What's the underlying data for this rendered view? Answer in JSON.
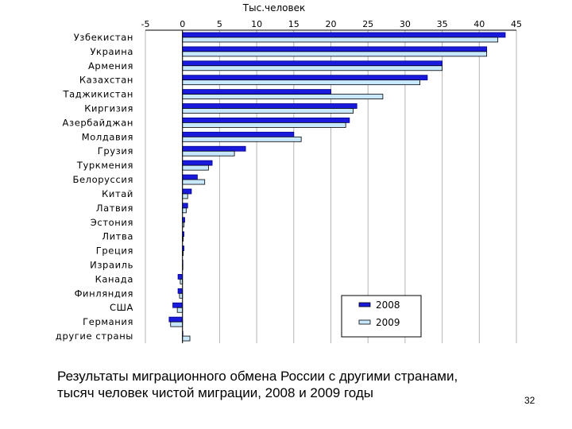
{
  "chart_data": {
    "type": "bar",
    "orientation": "horizontal",
    "title": "Тыс.человек",
    "xlim": [
      -5,
      45
    ],
    "xticks": [
      "-5",
      "0",
      "5",
      "10",
      "15",
      "20",
      "25",
      "30",
      "35",
      "40",
      "45"
    ],
    "xtick_values": [
      -5,
      0,
      5,
      10,
      15,
      20,
      25,
      30,
      35,
      40,
      45
    ],
    "grid": true,
    "legend_position": "bottom-right",
    "categories": [
      "Узбекистан",
      "Украина",
      "Армения",
      "Казахстан",
      "Таджикистан",
      "Киргизия",
      "Азербайджан",
      "Молдавия",
      "Грузия",
      "Туркмения",
      "Белоруссия",
      "Китай",
      "Латвия",
      "Эстония",
      "Литва",
      "Греция",
      "Израиль",
      "Канада",
      "Финляндия",
      "США",
      "Германия",
      "другие страны"
    ],
    "series": [
      {
        "name": "2008",
        "color": "#1a1adc",
        "values": [
          43.5,
          41.0,
          35.0,
          33.0,
          20.0,
          23.5,
          22.5,
          15.0,
          8.5,
          4.0,
          2.0,
          1.2,
          0.7,
          0.3,
          0.2,
          0.2,
          0.0,
          -0.6,
          -0.6,
          -1.3,
          -1.8,
          0.0
        ]
      },
      {
        "name": "2009",
        "color": "#c8e8ff",
        "values": [
          42.5,
          41.0,
          35.0,
          32.0,
          27.0,
          23.0,
          22.0,
          16.0,
          7.0,
          3.5,
          3.0,
          0.7,
          0.5,
          0.2,
          0.1,
          0.1,
          0.0,
          -0.3,
          -0.4,
          -0.7,
          -1.6,
          1.0
        ]
      }
    ]
  },
  "caption": {
    "line1": "Результаты миграционного обмена России с другими странами,",
    "line2": "тысяч человек чистой миграции, 2008 и 2009 годы"
  },
  "page_number": "32"
}
